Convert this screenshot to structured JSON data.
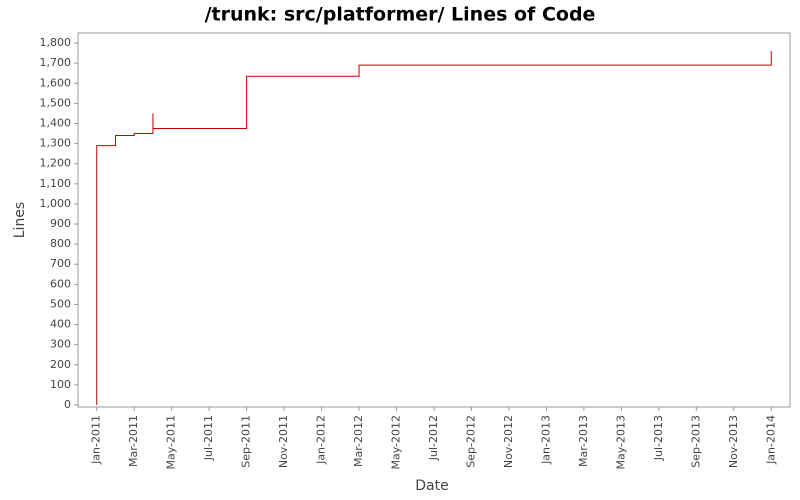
{
  "chart_data": {
    "type": "line",
    "title": "/trunk: src/platformer/ Lines of Code",
    "x_label": "Date",
    "y_label": "Lines",
    "step": true,
    "series": [
      {
        "name": "Lines",
        "color": "#c00000",
        "x": [
          "2011-01",
          "2011-01",
          "2011-01",
          "2011-01",
          "2011-01",
          "2011-02",
          "2011-03",
          "2011-04",
          "2011-04",
          "2011-09",
          "2011-09",
          "2012-03",
          "2014-01"
        ],
        "values": [
          0,
          550,
          660,
          1120,
          1290,
          1340,
          1350,
          1450,
          1375,
          1510,
          1635,
          1690,
          1760
        ]
      }
    ],
    "xlim": [
      "2010-12",
      "2014-02"
    ],
    "xticks": [
      {
        "value": "2011-01",
        "label": "Jan-2011"
      },
      {
        "value": "2011-03",
        "label": "Mar-2011"
      },
      {
        "value": "2011-05",
        "label": "May-2011"
      },
      {
        "value": "2011-07",
        "label": "Jul-2011"
      },
      {
        "value": "2011-09",
        "label": "Sep-2011"
      },
      {
        "value": "2011-11",
        "label": "Nov-2011"
      },
      {
        "value": "2012-01",
        "label": "Jan-2012"
      },
      {
        "value": "2012-03",
        "label": "Mar-2012"
      },
      {
        "value": "2012-05",
        "label": "May-2012"
      },
      {
        "value": "2012-07",
        "label": "Jul-2012"
      },
      {
        "value": "2012-09",
        "label": "Sep-2012"
      },
      {
        "value": "2012-11",
        "label": "Nov-2012"
      },
      {
        "value": "2013-01",
        "label": "Jan-2013"
      },
      {
        "value": "2013-03",
        "label": "Mar-2013"
      },
      {
        "value": "2013-05",
        "label": "May-2013"
      },
      {
        "value": "2013-07",
        "label": "Jul-2013"
      },
      {
        "value": "2013-09",
        "label": "Sep-2013"
      },
      {
        "value": "2013-11",
        "label": "Nov-2013"
      },
      {
        "value": "2014-01",
        "label": "Jan-2014"
      }
    ],
    "ylim": [
      -10,
      1850
    ],
    "yticks": [
      0,
      100,
      200,
      300,
      400,
      500,
      600,
      700,
      800,
      900,
      {
        "value": 1000,
        "label": "1,000"
      },
      {
        "value": 1100,
        "label": "1,100"
      },
      {
        "value": 1200,
        "label": "1,200"
      },
      {
        "value": 1300,
        "label": "1,300"
      },
      {
        "value": 1400,
        "label": "1,400"
      },
      {
        "value": 1500,
        "label": "1,500"
      },
      {
        "value": 1600,
        "label": "1,600"
      },
      {
        "value": 1700,
        "label": "1,700"
      },
      {
        "value": 1800,
        "label": "1,800"
      }
    ],
    "grid": false
  }
}
